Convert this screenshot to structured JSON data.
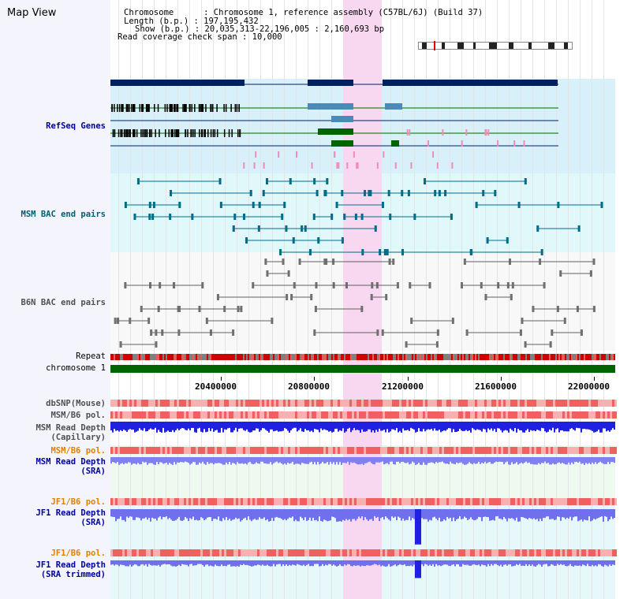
{
  "page": {
    "title": "Map View"
  },
  "info": {
    "line1": "Chromosome      : Chromosome 1, reference assembly (C57BL/6J) (Build 37)",
    "line2": "Length (b.p.) : 197,195,432",
    "line3": "Show (b.p.) : 20,035,313-22,196,005 : 2,160,693 bp",
    "line4": "Read coverage check span : 10,000"
  },
  "tracks": {
    "refseq": "RefSeq Genes",
    "msm_bac": "MSM BAC end pairs",
    "b6n_bac": "B6N BAC end pairs",
    "repeat": "Repeat",
    "chromosome": "chromosome 1",
    "dbsnp": "dbSNP(Mouse)",
    "msm_b6_pol": "MSM/B6 pol.",
    "msm_depth_cap_1": "MSM Read Depth",
    "msm_depth_cap_2": "(Capillary)",
    "msm_b6_pol_2": "MSM/B6 pol.",
    "msm_depth_sra_1": "MSM Read Depth",
    "msm_depth_sra_2": "(SRA)",
    "jf1_b6_pol": "JF1/B6 pol.",
    "jf1_depth_sra_1": "JF1 Read Depth",
    "jf1_depth_sra_2": "(SRA)",
    "jf1_b6_pol_2": "JF1/B6 pol.",
    "jf1_depth_trim_1": "JF1 Read Depth",
    "jf1_depth_trim_2": "(SRA trimmed)"
  },
  "axis": {
    "ticks": [
      "20400000",
      "20800000",
      "21200000",
      "21600000",
      "22000000"
    ]
  },
  "colors": {
    "refseq_bg": "#d8f0fa",
    "msm_bg": "#e0f8fa",
    "b6n_bg": "#f8f8f8",
    "highlight": "#f8d8f0",
    "navy": "#002060",
    "green": "#006400",
    "track_blue_label": "#0000a0",
    "track_teal_label": "#006070",
    "track_gray_label": "#505050",
    "track_orange_label": "#e08000"
  }
}
